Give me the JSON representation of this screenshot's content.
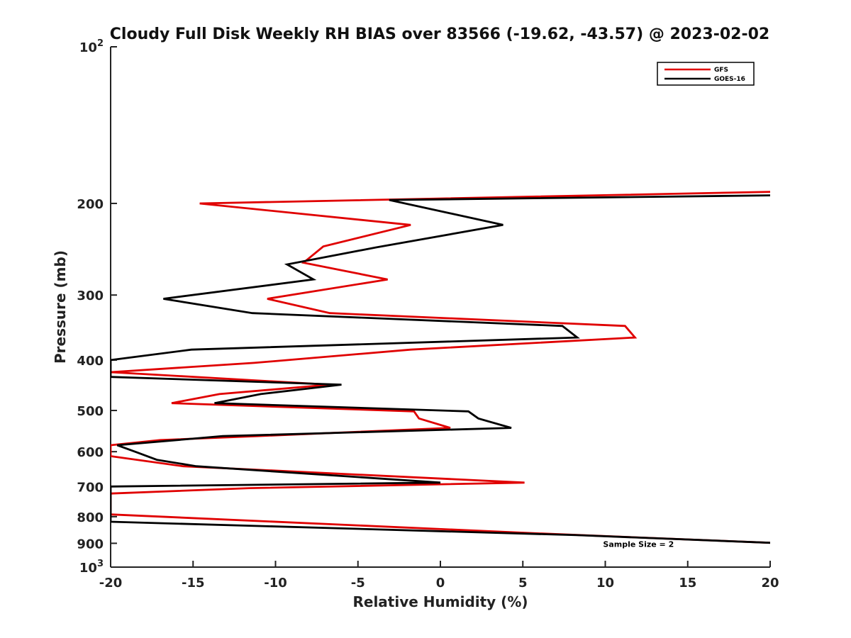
{
  "chart_data": {
    "type": "line",
    "title": "Cloudy Full Disk Weekly RH BIAS over 83566 (-19.62, -43.57) @ 2023-02-02",
    "xlabel": "Relative Humidity (%)",
    "ylabel": "Pressure (mb)",
    "xlim": [
      -20,
      20
    ],
    "ylim": [
      100,
      1000
    ],
    "y_scale": "log",
    "y_reversed": true,
    "grid": false,
    "legend_position": "top-right",
    "x_ticks": [
      "-20",
      "-15",
      "-10",
      "-5",
      "0",
      "5",
      "10",
      "15",
      "20"
    ],
    "y_ticks": [
      {
        "value": 100,
        "base": "10",
        "exp": "2"
      },
      {
        "value": 200,
        "label": "200"
      },
      {
        "value": 300,
        "label": "300"
      },
      {
        "value": 400,
        "label": "400"
      },
      {
        "value": 500,
        "label": "500"
      },
      {
        "value": 600,
        "label": "600"
      },
      {
        "value": 700,
        "label": "700"
      },
      {
        "value": 800,
        "label": "800"
      },
      {
        "value": 900,
        "label": "900"
      },
      {
        "value": 1000,
        "base": "10",
        "exp": "3"
      }
    ],
    "series": [
      {
        "name": "GFS",
        "color": "#e00000",
        "points": [
          [
            20,
            190
          ],
          [
            -14.6,
            200
          ],
          [
            -1.8,
            220
          ],
          [
            -7.1,
            242
          ],
          [
            -8.3,
            260
          ],
          [
            -3.2,
            280
          ],
          [
            -10.5,
            305
          ],
          [
            -6.7,
            325
          ],
          [
            11.2,
            344
          ],
          [
            11.8,
            362
          ],
          [
            -1.8,
            382
          ],
          [
            -11.3,
            405
          ],
          [
            -20,
            422
          ],
          [
            -6.7,
            446
          ],
          [
            -13.4,
            465
          ],
          [
            -16.3,
            484
          ],
          [
            -1.6,
            502
          ],
          [
            -1.3,
            518
          ],
          [
            0.6,
            540
          ],
          [
            -11.1,
            560
          ],
          [
            -17,
            570
          ],
          [
            -20,
            583
          ],
          [
            -20,
            612
          ],
          [
            -15.6,
            640
          ],
          [
            5.1,
            688
          ],
          [
            -11.6,
            705
          ],
          [
            -20,
            722
          ],
          [
            -20,
            792
          ],
          [
            6.2,
            862
          ],
          [
            20,
            898
          ]
        ]
      },
      {
        "name": "GOES-16",
        "color": "#000000",
        "points": [
          [
            20,
            193
          ],
          [
            -3.1,
            197
          ],
          [
            3.8,
            220
          ],
          [
            -3.9,
            243
          ],
          [
            -9.3,
            262
          ],
          [
            -7.7,
            280
          ],
          [
            -16.8,
            305
          ],
          [
            -11.4,
            325
          ],
          [
            7.4,
            344
          ],
          [
            8.3,
            362
          ],
          [
            -15.1,
            382
          ],
          [
            -20,
            400
          ],
          [
            -20,
            431
          ],
          [
            -6,
            446
          ],
          [
            -10.9,
            465
          ],
          [
            -13.7,
            484
          ],
          [
            1.7,
            502
          ],
          [
            2.3,
            518
          ],
          [
            4.3,
            540
          ],
          [
            -13.2,
            560
          ],
          [
            -19.6,
            583
          ],
          [
            -18.4,
            602
          ],
          [
            -17.2,
            622
          ],
          [
            -14.8,
            640
          ],
          [
            0,
            688
          ],
          [
            -20,
            700
          ],
          [
            -20,
            818
          ],
          [
            8.3,
            868
          ],
          [
            20,
            898
          ]
        ]
      }
    ],
    "annotations": [
      {
        "text": "Sample Size = 2",
        "x": 15.8,
        "y": 900
      }
    ]
  }
}
